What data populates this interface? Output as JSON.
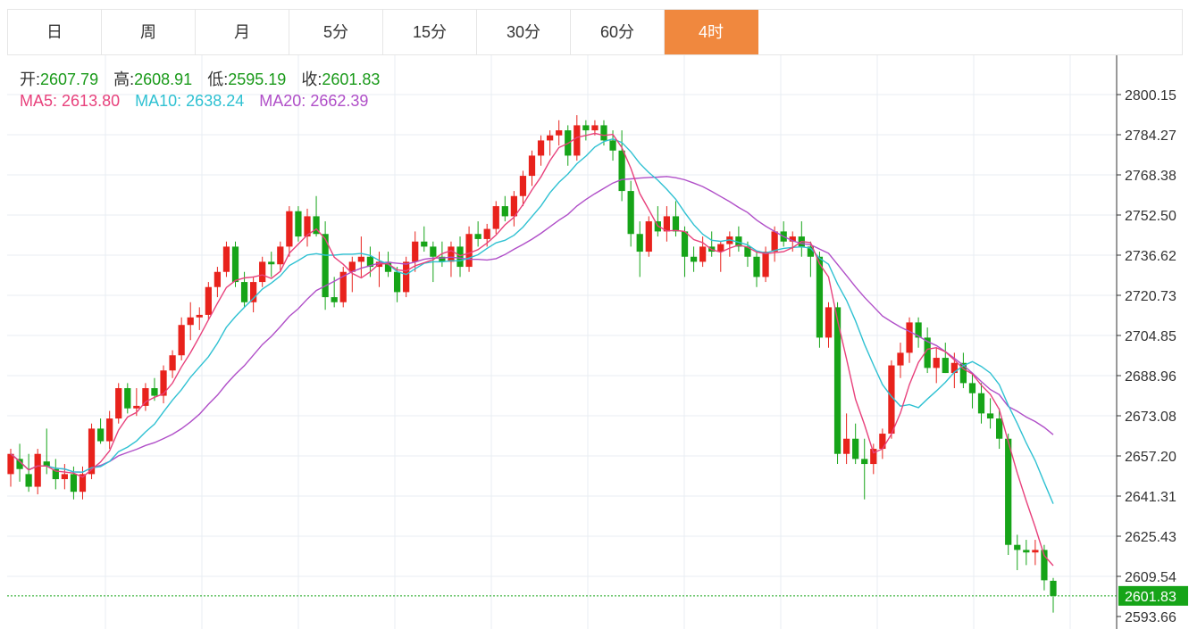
{
  "tabs": [
    {
      "label": "日",
      "active": false
    },
    {
      "label": "周",
      "active": false
    },
    {
      "label": "月",
      "active": false
    },
    {
      "label": "5分",
      "active": false
    },
    {
      "label": "15分",
      "active": false
    },
    {
      "label": "30分",
      "active": false
    },
    {
      "label": "60分",
      "active": false
    },
    {
      "label": "4时",
      "active": true
    }
  ],
  "info": {
    "open_label": "开:",
    "open": "2607.79",
    "high_label": "高:",
    "high": "2608.91",
    "low_label": "低:",
    "low": "2595.19",
    "close_label": "收:",
    "close": "2601.83",
    "ma5_label": "MA5:",
    "ma5": "2613.80",
    "ma10_label": "MA10:",
    "ma10": "2638.24",
    "ma20_label": "MA20:",
    "ma20": "2662.39"
  },
  "colors": {
    "up": "#e8221c",
    "down": "#16a418",
    "ma5": "#e8417c",
    "ma10": "#2fc1d2",
    "ma20": "#b04fc8",
    "active_tab": "#f0883e",
    "last_price_bg": "#16a418",
    "grid": "#e8eef3"
  },
  "chart_data": {
    "type": "candlestick",
    "y_ticks": [
      "2800.15",
      "2784.27",
      "2768.38",
      "2752.50",
      "2736.62",
      "2720.73",
      "2704.85",
      "2688.96",
      "2673.08",
      "2657.20",
      "2641.31",
      "2625.43",
      "2609.54",
      "2593.66"
    ],
    "ylim": [
      2590,
      2815
    ],
    "last_price": "2601.83",
    "candles": [
      [
        2650,
        2660,
        2645,
        2658
      ],
      [
        2656,
        2662,
        2647,
        2652
      ],
      [
        2650,
        2658,
        2643,
        2645
      ],
      [
        2645,
        2660,
        2642,
        2658
      ],
      [
        2655,
        2668,
        2650,
        2653
      ],
      [
        2652,
        2656,
        2644,
        2648
      ],
      [
        2648,
        2654,
        2644,
        2650
      ],
      [
        2650,
        2653,
        2640,
        2643
      ],
      [
        2643,
        2653,
        2640,
        2650
      ],
      [
        2650,
        2670,
        2648,
        2668
      ],
      [
        2668,
        2672,
        2662,
        2663
      ],
      [
        2663,
        2675,
        2660,
        2672
      ],
      [
        2672,
        2686,
        2670,
        2684
      ],
      [
        2684,
        2686,
        2674,
        2676
      ],
      [
        2676,
        2684,
        2673,
        2677
      ],
      [
        2677,
        2686,
        2675,
        2684
      ],
      [
        2684,
        2688,
        2679,
        2681
      ],
      [
        2681,
        2693,
        2678,
        2691
      ],
      [
        2691,
        2699,
        2688,
        2697
      ],
      [
        2697,
        2712,
        2695,
        2709
      ],
      [
        2709,
        2718,
        2703,
        2712
      ],
      [
        2712,
        2716,
        2707,
        2713
      ],
      [
        2713,
        2726,
        2711,
        2724
      ],
      [
        2724,
        2732,
        2720,
        2730
      ],
      [
        2730,
        2742,
        2728,
        2740
      ],
      [
        2740,
        2742,
        2724,
        2726
      ],
      [
        2726,
        2730,
        2716,
        2718
      ],
      [
        2718,
        2728,
        2714,
        2726
      ],
      [
        2726,
        2736,
        2724,
        2734
      ],
      [
        2734,
        2738,
        2728,
        2733
      ],
      [
        2733,
        2742,
        2730,
        2740
      ],
      [
        2740,
        2756,
        2736,
        2754
      ],
      [
        2754,
        2756,
        2742,
        2744
      ],
      [
        2744,
        2755,
        2740,
        2752
      ],
      [
        2752,
        2760,
        2744,
        2745
      ],
      [
        2745,
        2750,
        2715,
        2720
      ],
      [
        2720,
        2728,
        2716,
        2718
      ],
      [
        2718,
        2732,
        2716,
        2730
      ],
      [
        2730,
        2736,
        2722,
        2734
      ],
      [
        2734,
        2744,
        2728,
        2736
      ],
      [
        2736,
        2740,
        2728,
        2732
      ],
      [
        2732,
        2738,
        2724,
        2734
      ],
      [
        2734,
        2738,
        2728,
        2730
      ],
      [
        2730,
        2732,
        2718,
        2722
      ],
      [
        2722,
        2736,
        2720,
        2734
      ],
      [
        2734,
        2746,
        2730,
        2742
      ],
      [
        2742,
        2748,
        2738,
        2740
      ],
      [
        2740,
        2742,
        2726,
        2736
      ],
      [
        2736,
        2742,
        2732,
        2734
      ],
      [
        2734,
        2742,
        2728,
        2740
      ],
      [
        2740,
        2744,
        2728,
        2732
      ],
      [
        2732,
        2748,
        2730,
        2745
      ],
      [
        2745,
        2750,
        2740,
        2743
      ],
      [
        2743,
        2749,
        2740,
        2747
      ],
      [
        2747,
        2758,
        2745,
        2756
      ],
      [
        2756,
        2760,
        2750,
        2752
      ],
      [
        2752,
        2762,
        2748,
        2760
      ],
      [
        2760,
        2770,
        2756,
        2768
      ],
      [
        2768,
        2778,
        2764,
        2776
      ],
      [
        2776,
        2784,
        2772,
        2782
      ],
      [
        2782,
        2786,
        2776,
        2784
      ],
      [
        2784,
        2790,
        2780,
        2786
      ],
      [
        2786,
        2788,
        2772,
        2776
      ],
      [
        2776,
        2792,
        2774,
        2788
      ],
      [
        2788,
        2790,
        2782,
        2786
      ],
      [
        2786,
        2790,
        2784,
        2788
      ],
      [
        2788,
        2790,
        2780,
        2782
      ],
      [
        2782,
        2786,
        2774,
        2778
      ],
      [
        2778,
        2786,
        2758,
        2762
      ],
      [
        2762,
        2766,
        2740,
        2745
      ],
      [
        2745,
        2750,
        2728,
        2738
      ],
      [
        2738,
        2752,
        2736,
        2750
      ],
      [
        2750,
        2756,
        2744,
        2746
      ],
      [
        2746,
        2756,
        2742,
        2752
      ],
      [
        2752,
        2758,
        2744,
        2746
      ],
      [
        2746,
        2748,
        2728,
        2736
      ],
      [
        2736,
        2740,
        2730,
        2734
      ],
      [
        2734,
        2744,
        2732,
        2740
      ],
      [
        2740,
        2746,
        2736,
        2738
      ],
      [
        2738,
        2742,
        2730,
        2741
      ],
      [
        2741,
        2746,
        2736,
        2744
      ],
      [
        2744,
        2748,
        2738,
        2740
      ],
      [
        2740,
        2742,
        2732,
        2736
      ],
      [
        2736,
        2738,
        2724,
        2728
      ],
      [
        2728,
        2740,
        2726,
        2738
      ],
      [
        2738,
        2748,
        2734,
        2746
      ],
      [
        2746,
        2750,
        2740,
        2742
      ],
      [
        2742,
        2746,
        2738,
        2744
      ],
      [
        2744,
        2750,
        2736,
        2740
      ],
      [
        2740,
        2742,
        2728,
        2736
      ],
      [
        2736,
        2738,
        2700,
        2704
      ],
      [
        2704,
        2718,
        2700,
        2716
      ],
      [
        2716,
        2718,
        2654,
        2658
      ],
      [
        2658,
        2674,
        2654,
        2664
      ],
      [
        2664,
        2670,
        2654,
        2656
      ],
      [
        2656,
        2664,
        2640,
        2654
      ],
      [
        2654,
        2662,
        2650,
        2660
      ],
      [
        2660,
        2668,
        2656,
        2666
      ],
      [
        2666,
        2695,
        2664,
        2693
      ],
      [
        2693,
        2702,
        2688,
        2698
      ],
      [
        2698,
        2712,
        2694,
        2710
      ],
      [
        2710,
        2712,
        2700,
        2704
      ],
      [
        2704,
        2708,
        2690,
        2692
      ],
      [
        2692,
        2700,
        2686,
        2696
      ],
      [
        2696,
        2702,
        2690,
        2690
      ],
      [
        2690,
        2698,
        2684,
        2694
      ],
      [
        2694,
        2698,
        2684,
        2686
      ],
      [
        2686,
        2690,
        2676,
        2682
      ],
      [
        2682,
        2686,
        2670,
        2674
      ],
      [
        2674,
        2680,
        2668,
        2672
      ],
      [
        2672,
        2676,
        2660,
        2664
      ],
      [
        2664,
        2666,
        2618,
        2622
      ],
      [
        2622,
        2626,
        2612,
        2620
      ],
      [
        2620,
        2624,
        2614,
        2619
      ],
      [
        2619,
        2624,
        2614,
        2620
      ],
      [
        2620,
        2622,
        2604,
        2608
      ],
      [
        2607.79,
        2608.91,
        2595.19,
        2601.83
      ]
    ]
  }
}
